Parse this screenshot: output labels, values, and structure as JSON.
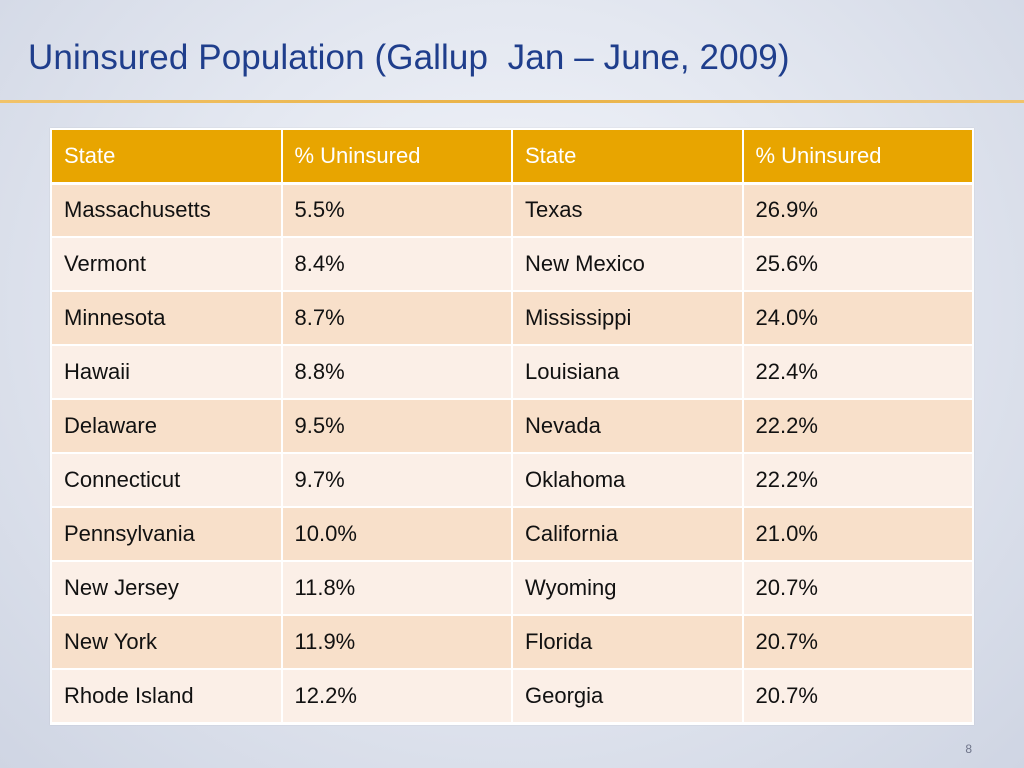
{
  "slide": {
    "title": "Uninsured Population (Gallup  Jan – June, 2009)",
    "page_number": "8"
  },
  "colors": {
    "title": "#1f3e8c",
    "header_fill": "#e8a500",
    "row_fill_odd": "#f8e0ca",
    "row_fill_even": "#fbefe7",
    "rule": "#e9b247"
  },
  "table": {
    "headers": [
      "State",
      "% Uninsured",
      "State",
      "% Uninsured"
    ],
    "rows": [
      [
        "Massachusetts",
        "5.5%",
        "Texas",
        "26.9%"
      ],
      [
        "Vermont",
        "8.4%",
        "New Mexico",
        "25.6%"
      ],
      [
        "Minnesota",
        "8.7%",
        "Mississippi",
        "24.0%"
      ],
      [
        "Hawaii",
        "8.8%",
        "Louisiana",
        "22.4%"
      ],
      [
        "Delaware",
        "9.5%",
        "Nevada",
        "22.2%"
      ],
      [
        "Connecticut",
        "9.7%",
        "Oklahoma",
        "22.2%"
      ],
      [
        "Pennsylvania",
        "10.0%",
        "California",
        "21.0%"
      ],
      [
        "New Jersey",
        "11.8%",
        "Wyoming",
        "20.7%"
      ],
      [
        "New York",
        "11.9%",
        "Florida",
        "20.7%"
      ],
      [
        "Rhode Island",
        "12.2%",
        "Georgia",
        "20.7%"
      ]
    ]
  }
}
